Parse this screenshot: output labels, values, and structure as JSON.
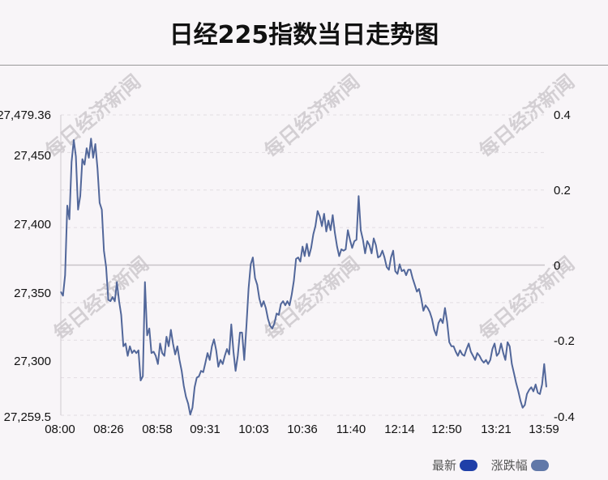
{
  "title": "日经225指数当日走势图",
  "watermark": "每日经济新闻",
  "legend": [
    {
      "label": "最新",
      "color": "#1f3fa8"
    },
    {
      "label": "涨跌幅",
      "color": "#6178a8"
    }
  ],
  "chart_data": {
    "type": "line",
    "title": "日经225指数当日走势图",
    "x_ticks": [
      "08:00",
      "08:26",
      "08:58",
      "09:31",
      "10:03",
      "10:36",
      "11:40",
      "12:14",
      "12:50",
      "13:21",
      "13:59"
    ],
    "y_left_ticks": [
      "27,479.36",
      "27,450",
      "27,400",
      "27,350",
      "27,300",
      "27,259.5"
    ],
    "y_left_range": [
      27259.5,
      27479.36
    ],
    "y_right_ticks": [
      "0.4",
      "0.2",
      "0",
      "-0.2",
      "-0.4"
    ],
    "y_right_range": [
      -0.4,
      0.4
    ],
    "reference_line": 27369.43,
    "line_color": "#52679a",
    "series": [
      {
        "values": [
          27350,
          27347,
          27362,
          27413,
          27403,
          27445,
          27461,
          27449,
          27410,
          27420,
          27447,
          27443,
          27455,
          27448,
          27462,
          27448,
          27458,
          27440,
          27415,
          27410,
          27380,
          27368,
          27344,
          27343,
          27346,
          27343,
          27357,
          27343,
          27333,
          27310,
          27312,
          27303,
          27310,
          27305,
          27307,
          27305,
          27307,
          27285,
          27288,
          27357,
          27318,
          27323,
          27305,
          27306,
          27303,
          27297,
          27312,
          27305,
          27303,
          27317,
          27310,
          27322,
          27312,
          27304,
          27310,
          27300,
          27292,
          27281,
          27273,
          27268,
          27260,
          27265,
          27280,
          27287,
          27288,
          27292,
          27291,
          27298,
          27305,
          27300,
          27310,
          27315,
          27307,
          27295,
          27300,
          27297,
          27303,
          27308,
          27304,
          27326,
          27306,
          27292,
          27303,
          27320,
          27320,
          27300,
          27325,
          27352,
          27370,
          27375,
          27360,
          27355,
          27345,
          27339,
          27343,
          27338,
          27330,
          27325,
          27323,
          27327,
          27334,
          27333,
          27341,
          27343,
          27340,
          27343,
          27340,
          27348,
          27358,
          27374,
          27375,
          27372,
          27383,
          27376,
          27385,
          27376,
          27382,
          27392,
          27398,
          27409,
          27405,
          27398,
          27407,
          27394,
          27402,
          27395,
          27406,
          27393,
          27383,
          27376,
          27381,
          27380,
          27381,
          27395,
          27388,
          27382,
          27387,
          27388,
          27420,
          27395,
          27388,
          27378,
          27387,
          27384,
          27378,
          27389,
          27384,
          27375,
          27376,
          27380,
          27375,
          27368,
          27366,
          27375,
          27380,
          27365,
          27363,
          27370,
          27365,
          27366,
          27362,
          27366,
          27366,
          27360,
          27355,
          27350,
          27352,
          27345,
          27336,
          27340,
          27338,
          27335,
          27330,
          27322,
          27318,
          27327,
          27330,
          27327,
          27338,
          27328,
          27313,
          27310,
          27310,
          27306,
          27303,
          27307,
          27304,
          27303,
          27308,
          27312,
          27306,
          27303,
          27300,
          27305,
          27303,
          27300,
          27298,
          27300,
          27297,
          27300,
          27308,
          27312,
          27303,
          27305,
          27312,
          27305,
          27300,
          27313,
          27310,
          27297,
          27290,
          27283,
          27277,
          27270,
          27265,
          27267,
          27275,
          27278,
          27280,
          27277,
          27282,
          27276,
          27275,
          27282,
          27297,
          27280
        ]
      }
    ]
  }
}
